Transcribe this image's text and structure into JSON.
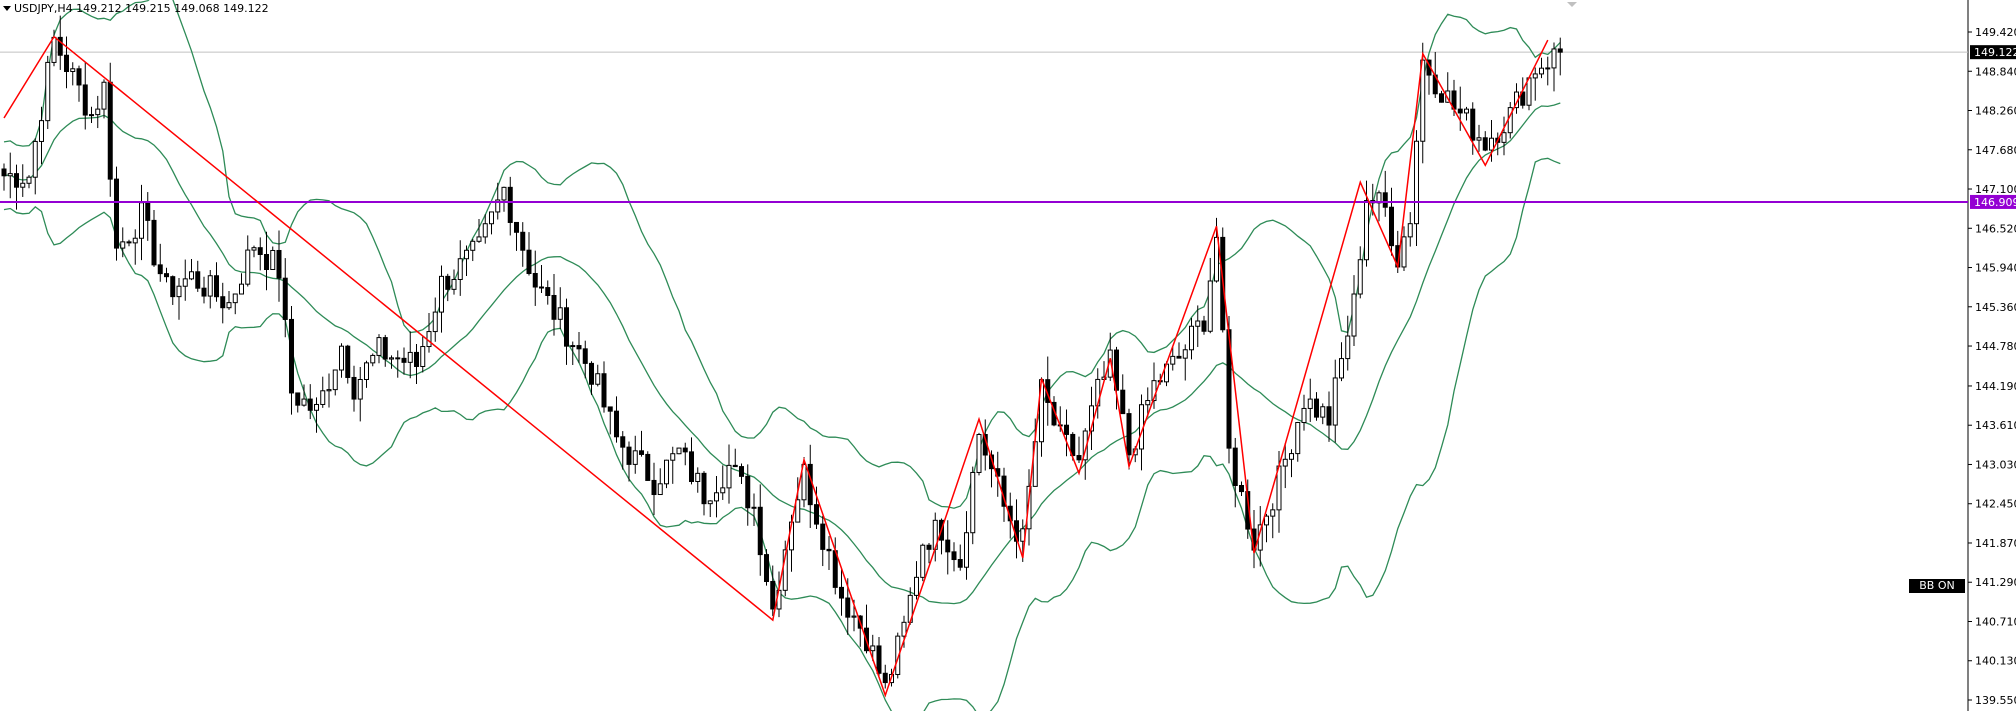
{
  "header": {
    "symbol": "USDJPY,H4",
    "ohlc_text": "149.212 149.215 149.068 149.122",
    "label": "USDJPY,H4  149.212 149.215 149.068 149.122"
  },
  "badge": {
    "label": "BB ON"
  },
  "colors": {
    "bull": "#ffffff",
    "bear": "#000000",
    "wick": "#000000",
    "bollinger": "#2e8b57",
    "zigzag": "#ff0000",
    "level_line": "#9400d3",
    "grid_price_line": "#c0c0c0",
    "axis_text": "#000000"
  },
  "chart_data": {
    "type": "candlestick",
    "instrument": "USDJPY",
    "timeframe": "H4",
    "ylim": [
      139.35,
      149.9
    ],
    "y_ticks": [
      "149.420",
      "148.840",
      "148.260",
      "147.680",
      "147.100",
      "146.520",
      "145.940",
      "145.360",
      "144.780",
      "144.190",
      "143.610",
      "143.030",
      "142.450",
      "141.870",
      "141.290",
      "140.710",
      "140.130",
      "139.550"
    ],
    "current_price": {
      "value": 149.122,
      "label": "149.122"
    },
    "horizontal_level": {
      "value": 146.909,
      "label": "146.909"
    },
    "zigzag_points": [
      [
        0,
        148.15
      ],
      [
        8,
        149.35
      ],
      [
        123,
        140.73
      ],
      [
        128,
        143.1
      ],
      [
        141,
        139.62
      ],
      [
        156,
        143.7
      ],
      [
        163,
        141.65
      ],
      [
        166,
        144.3
      ],
      [
        172,
        142.9
      ],
      [
        177,
        144.6
      ],
      [
        180,
        143.0
      ],
      [
        194,
        146.55
      ],
      [
        200,
        141.72
      ],
      [
        217,
        147.2
      ],
      [
        223,
        145.95
      ],
      [
        227,
        149.1
      ],
      [
        237,
        147.45
      ],
      [
        247,
        149.3
      ]
    ],
    "bollinger_period": 20,
    "bollinger_deviation": 2,
    "candles_approx_count": 250,
    "closes_anchor": [
      [
        0,
        147.3
      ],
      [
        4,
        147.3
      ],
      [
        8,
        149.3
      ],
      [
        14,
        148.2
      ],
      [
        16,
        148.6
      ],
      [
        18,
        146.2
      ],
      [
        22,
        146.7
      ],
      [
        26,
        145.6
      ],
      [
        30,
        145.8
      ],
      [
        36,
        145.4
      ],
      [
        40,
        146.3
      ],
      [
        44,
        145.9
      ],
      [
        46,
        144.1
      ],
      [
        50,
        143.8
      ],
      [
        54,
        144.8
      ],
      [
        56,
        144.2
      ],
      [
        60,
        144.7
      ],
      [
        66,
        144.5
      ],
      [
        70,
        145.7
      ],
      [
        76,
        146.2
      ],
      [
        80,
        147.1
      ],
      [
        85,
        145.7
      ],
      [
        90,
        145.0
      ],
      [
        94,
        144.4
      ],
      [
        98,
        143.4
      ],
      [
        104,
        142.8
      ],
      [
        108,
        143.2
      ],
      [
        112,
        142.6
      ],
      [
        116,
        143.0
      ],
      [
        120,
        142.4
      ],
      [
        123,
        140.9
      ],
      [
        126,
        142.3
      ],
      [
        128,
        142.9
      ],
      [
        130,
        142.3
      ],
      [
        134,
        141.1
      ],
      [
        138,
        140.5
      ],
      [
        141,
        139.7
      ],
      [
        144,
        140.6
      ],
      [
        147,
        141.9
      ],
      [
        150,
        142.1
      ],
      [
        153,
        141.6
      ],
      [
        156,
        143.5
      ],
      [
        160,
        142.4
      ],
      [
        163,
        141.9
      ],
      [
        166,
        144.1
      ],
      [
        169,
        143.4
      ],
      [
        172,
        143.1
      ],
      [
        175,
        144.1
      ],
      [
        177,
        144.5
      ],
      [
        180,
        143.2
      ],
      [
        184,
        144.2
      ],
      [
        188,
        144.6
      ],
      [
        192,
        145.2
      ],
      [
        194,
        146.4
      ],
      [
        196,
        143.2
      ],
      [
        200,
        141.9
      ],
      [
        204,
        142.8
      ],
      [
        208,
        144.0
      ],
      [
        212,
        143.7
      ],
      [
        216,
        145.4
      ],
      [
        218,
        147.0
      ],
      [
        221,
        146.8
      ],
      [
        223,
        146.1
      ],
      [
        225,
        146.7
      ],
      [
        227,
        149.0
      ],
      [
        232,
        148.3
      ],
      [
        237,
        147.8
      ],
      [
        241,
        148.2
      ],
      [
        245,
        148.9
      ],
      [
        249,
        149.12
      ]
    ]
  }
}
